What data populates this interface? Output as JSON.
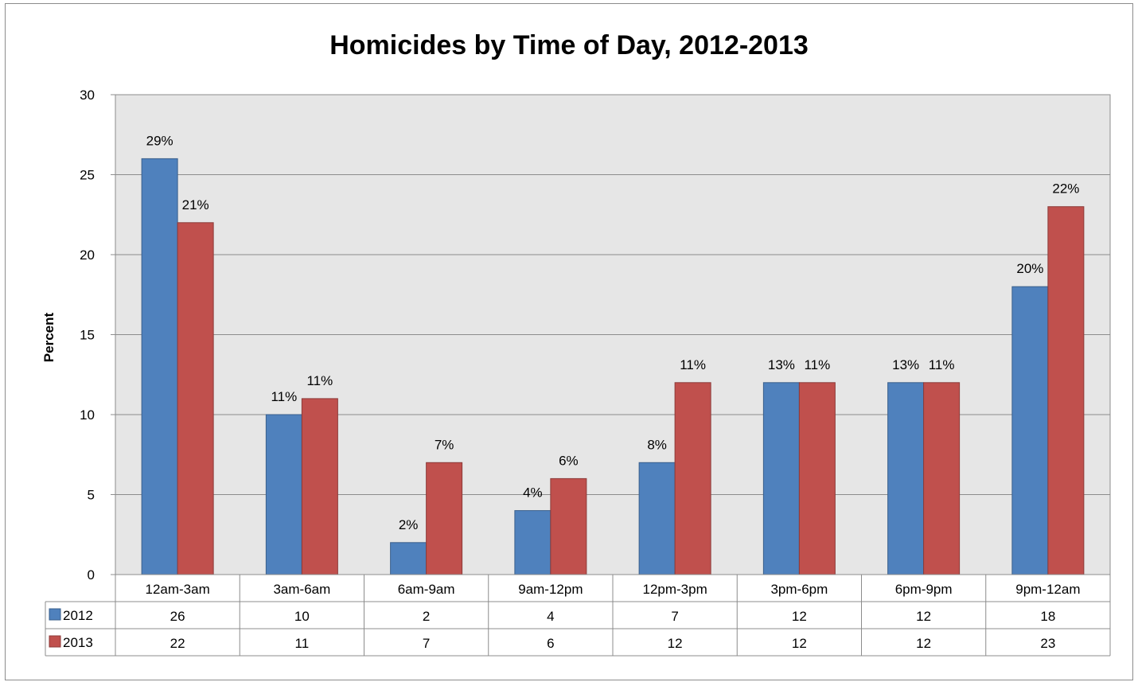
{
  "chart_data": {
    "type": "bar",
    "title": "Homicides by Time of Day, 2012-2013",
    "xlabel": "",
    "ylabel": "Percent",
    "ylim": [
      0,
      30
    ],
    "yticks": [
      0,
      5,
      10,
      15,
      20,
      25,
      30
    ],
    "grid": true,
    "legend": "data table",
    "categories": [
      "12am-3am",
      "3am-6am",
      "6am-9am",
      "9am-12pm",
      "12pm-3pm",
      "3pm-6pm",
      "6pm-9pm",
      "9pm-12am"
    ],
    "series": [
      {
        "name": "2012",
        "color": "#4f81bd",
        "values": [
          26,
          10,
          2,
          4,
          7,
          12,
          12,
          18
        ],
        "data_labels": [
          "29%",
          "11%",
          "2%",
          "4%",
          "8%",
          "13%",
          "13%",
          "20%"
        ]
      },
      {
        "name": "2013",
        "color": "#c0504d",
        "values": [
          22,
          11,
          7,
          6,
          12,
          12,
          12,
          23
        ],
        "data_labels": [
          "21%",
          "11%",
          "7%",
          "6%",
          "11%",
          "11%",
          "11%",
          "22%"
        ]
      }
    ],
    "plot_background": "#e6e6e6"
  }
}
